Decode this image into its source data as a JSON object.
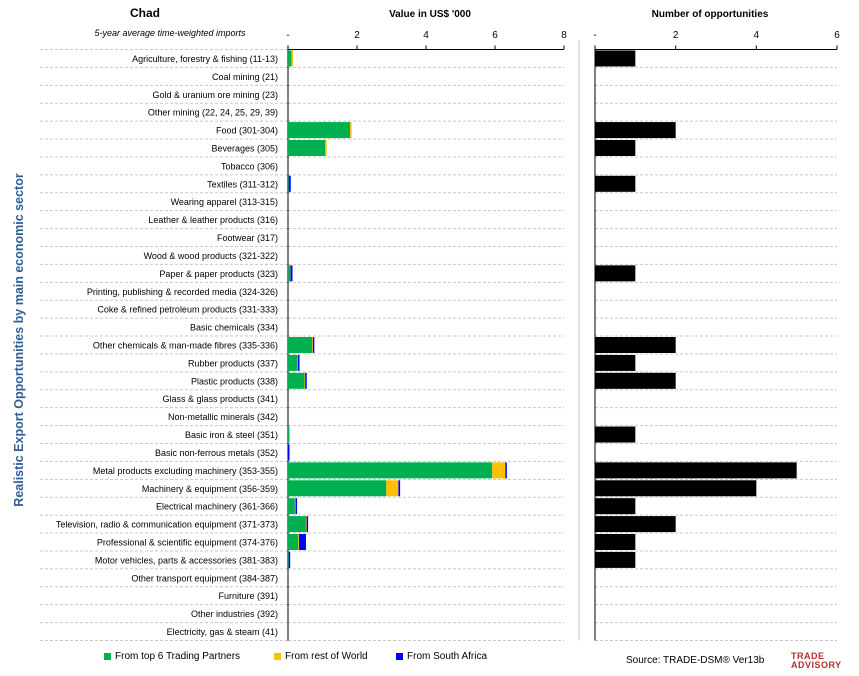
{
  "header": {
    "country": "Chad",
    "subtitle": "5-year average time-weighted imports",
    "value_title": "Value in US$ '000",
    "opps_title": "Number of opportunities",
    "y_axis_label": "Realistic Export Opportunities by main economic sector"
  },
  "legend": [
    {
      "label": "From top 6 Trading Partners",
      "color": "#00b050"
    },
    {
      "label": "From rest of World",
      "color": "#ffc000"
    },
    {
      "label": "From South Africa",
      "color": "#0000ff"
    }
  ],
  "source": "Source: TRADE-DSM®  Ver13b",
  "logo": {
    "line1": "TRADE",
    "line2": "ADVISORY"
  },
  "chart_data": [
    {
      "type": "bar",
      "orientation": "horizontal",
      "stacked": true,
      "title": "Value in US$ '000",
      "xlim": [
        0,
        8
      ],
      "xticks": [
        "-",
        "2",
        "4",
        "6",
        "8"
      ],
      "categories": [
        "Agriculture, forestry & fishing (11-13)",
        "Coal mining (21)",
        "Gold & uranium ore mining (23)",
        "Other mining (22, 24, 25, 29, 39)",
        "Food (301-304)",
        "Beverages (305)",
        "Tobacco (306)",
        "Textiles (311-312)",
        "Wearing apparel (313-315)",
        "Leather & leather products (316)",
        "Footwear (317)",
        "Wood & wood products (321-322)",
        "Paper & paper products (323)",
        "Printing, publishing & recorded media (324-326)",
        "Coke & refined petroleum products (331-333)",
        "Basic chemicals (334)",
        "Other chemicals & man-made fibres (335-336)",
        "Rubber products (337)",
        "Plastic products (338)",
        "Glass & glass products (341)",
        "Non-metallic minerals (342)",
        "Basic iron & steel (351)",
        "Basic non-ferrous metals (352)",
        "Metal products excluding machinery (353-355)",
        "Machinery & equipment (356-359)",
        "Electrical machinery (361-366)",
        "Television, radio & communication equipment (371-373)",
        "Professional & scientific equipment (374-376)",
        "Motor vehicles, parts & accessories (381-383)",
        "Other transport equipment (384-387)",
        "Furniture (391)",
        "Other industries (392)",
        "Electricity, gas & steam (41)"
      ],
      "series": [
        {
          "name": "From top 6 Trading Partners",
          "color": "#00b050",
          "values": [
            0.1,
            0,
            0,
            0,
            1.8,
            1.08,
            0,
            0.02,
            0,
            0,
            0,
            0,
            0.06,
            0,
            0,
            0,
            0.7,
            0.28,
            0.48,
            0,
            0,
            0.04,
            0,
            5.92,
            2.85,
            0.2,
            0.52,
            0.3,
            0.02,
            0,
            0,
            0,
            0
          ]
        },
        {
          "name": "From rest of World",
          "color": "#ffc000",
          "values": [
            0.03,
            0,
            0,
            0,
            0.02,
            0.03,
            0,
            0,
            0,
            0,
            0,
            0,
            0.01,
            0,
            0,
            0,
            0.02,
            0.01,
            0.02,
            0,
            0,
            0,
            0,
            0.38,
            0.35,
            0.02,
            0.02,
            0.02,
            0,
            0,
            0,
            0,
            0
          ]
        },
        {
          "name": "From South Africa",
          "color": "#0000ff",
          "values": [
            0,
            0,
            0,
            0,
            0,
            0,
            0,
            0.06,
            0,
            0,
            0,
            0,
            0.06,
            0,
            0,
            0,
            0.04,
            0.01,
            0.04,
            0,
            0,
            0,
            0.03,
            0.03,
            0.05,
            0.01,
            0.04,
            0.2,
            0.03,
            0,
            0,
            0,
            0
          ]
        }
      ]
    },
    {
      "type": "bar",
      "orientation": "horizontal",
      "title": "Number of opportunities",
      "xlim": [
        0,
        6
      ],
      "xticks": [
        "-",
        "2",
        "4",
        "6"
      ],
      "series": [
        {
          "color": "#000000",
          "values": [
            1,
            0,
            0,
            0,
            2,
            1,
            0,
            1,
            0,
            0,
            0,
            0,
            1,
            0,
            0,
            0,
            2,
            1,
            2,
            0,
            0,
            1,
            0,
            5,
            4,
            1,
            2,
            1,
            1,
            0,
            0,
            0,
            0
          ]
        }
      ]
    }
  ]
}
